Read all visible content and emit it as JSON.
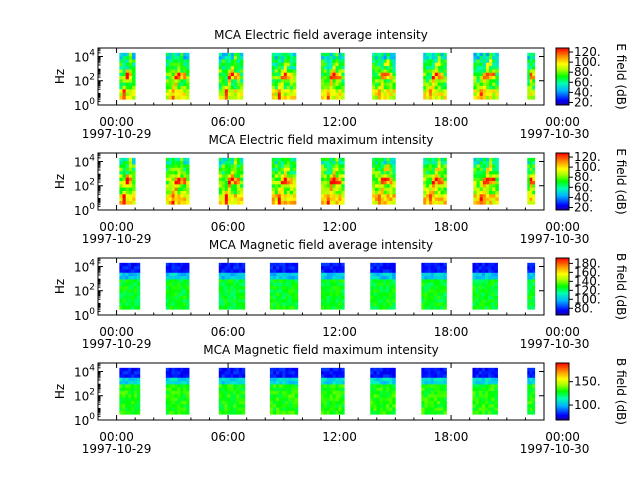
{
  "chart_data": [
    {
      "type": "heatmap",
      "title": "MCA  Electric field average intensity",
      "ylabel": "Hz",
      "colorbar_label": "E field (dB)",
      "colorbar_ticks": [
        "20.",
        "40.",
        "60.",
        "80.",
        "100.",
        "120."
      ],
      "colorbar_range": [
        15,
        128
      ],
      "y_scale": "log",
      "y_ticks": [
        {
          "base": "10",
          "exp": "0"
        },
        {
          "base": "10",
          "exp": "2"
        },
        {
          "base": "10",
          "exp": "4"
        }
      ],
      "x_ticks": [
        "00:00",
        "06:00",
        "12:00",
        "18:00",
        "00:00"
      ],
      "x_dates": [
        "1997-10-29",
        "1997-10-30"
      ],
      "x_range_hours": [
        -2,
        46
      ],
      "data_intervals_hours": [
        [
          0.3,
          2.0
        ],
        [
          5.3,
          7.8
        ],
        [
          11.0,
          13.6
        ],
        [
          16.7,
          19.3
        ],
        [
          22.0,
          24.5
        ],
        [
          27.5,
          30.0
        ],
        [
          33.0,
          35.5
        ],
        [
          38.4,
          41.1
        ],
        [
          44.2,
          45.0
        ]
      ],
      "freq_range_hz": [
        3,
        20000
      ],
      "intensity_profile": "electric-avg"
    },
    {
      "type": "heatmap",
      "title": "MCA  Electric field maximum intensity",
      "ylabel": "Hz",
      "colorbar_label": "E field (dB)",
      "colorbar_ticks": [
        "20.",
        "40.",
        "60.",
        "80.",
        "100.",
        "120."
      ],
      "colorbar_range": [
        15,
        128
      ],
      "y_scale": "log",
      "y_ticks": [
        {
          "base": "10",
          "exp": "0"
        },
        {
          "base": "10",
          "exp": "2"
        },
        {
          "base": "10",
          "exp": "4"
        }
      ],
      "x_ticks": [
        "00:00",
        "06:00",
        "12:00",
        "18:00",
        "00:00"
      ],
      "x_dates": [
        "1997-10-29",
        "1997-10-30"
      ],
      "x_range_hours": [
        -2,
        46
      ],
      "data_intervals_hours": [
        [
          0.3,
          2.0
        ],
        [
          5.3,
          7.8
        ],
        [
          11.0,
          13.6
        ],
        [
          16.7,
          19.3
        ],
        [
          22.0,
          24.5
        ],
        [
          27.5,
          30.0
        ],
        [
          33.0,
          35.5
        ],
        [
          38.4,
          41.1
        ],
        [
          44.2,
          45.0
        ]
      ],
      "freq_range_hz": [
        3,
        20000
      ],
      "intensity_profile": "electric-max"
    },
    {
      "type": "heatmap",
      "title": "MCA  Magnetic field average intensity",
      "ylabel": "Hz",
      "colorbar_label": "B field (dB)",
      "colorbar_ticks": [
        "80.",
        "100.",
        "120.",
        "140.",
        "160.",
        "180."
      ],
      "colorbar_range": [
        65,
        192
      ],
      "y_scale": "log",
      "y_ticks": [
        {
          "base": "10",
          "exp": "0"
        },
        {
          "base": "10",
          "exp": "2"
        },
        {
          "base": "10",
          "exp": "4"
        }
      ],
      "x_ticks": [
        "00:00",
        "06:00",
        "12:00",
        "18:00",
        "00:00"
      ],
      "x_dates": [
        "1997-10-29",
        "1997-10-30"
      ],
      "x_range_hours": [
        -2,
        46
      ],
      "data_intervals_hours": [
        [
          0.3,
          2.5
        ],
        [
          5.3,
          7.8
        ],
        [
          11.0,
          13.8
        ],
        [
          16.5,
          19.5
        ],
        [
          22.0,
          24.5
        ],
        [
          27.3,
          30.0
        ],
        [
          32.8,
          35.5
        ],
        [
          38.3,
          41.0
        ],
        [
          44.2,
          45.0
        ]
      ],
      "freq_range_hz": [
        3,
        20000
      ],
      "intensity_profile": "magnetic-avg"
    },
    {
      "type": "heatmap",
      "title": "MCA  Magnetic field maximum intensity",
      "ylabel": "Hz",
      "colorbar_label": "B field (dB)",
      "colorbar_ticks": [
        "100.",
        "150."
      ],
      "colorbar_range": [
        68,
        190
      ],
      "y_scale": "log",
      "y_ticks": [
        {
          "base": "10",
          "exp": "0"
        },
        {
          "base": "10",
          "exp": "2"
        },
        {
          "base": "10",
          "exp": "4"
        }
      ],
      "x_ticks": [
        "00:00",
        "06:00",
        "12:00",
        "18:00",
        "00:00"
      ],
      "x_dates": [
        "1997-10-29",
        "1997-10-30"
      ],
      "x_range_hours": [
        -2,
        46
      ],
      "data_intervals_hours": [
        [
          0.3,
          2.5
        ],
        [
          5.3,
          7.8
        ],
        [
          11.0,
          13.8
        ],
        [
          16.5,
          19.5
        ],
        [
          22.0,
          24.5
        ],
        [
          27.3,
          30.0
        ],
        [
          32.8,
          35.5
        ],
        [
          38.3,
          41.0
        ],
        [
          44.2,
          45.0
        ]
      ],
      "freq_range_hz": [
        3,
        20000
      ],
      "intensity_profile": "magnetic-max"
    }
  ]
}
